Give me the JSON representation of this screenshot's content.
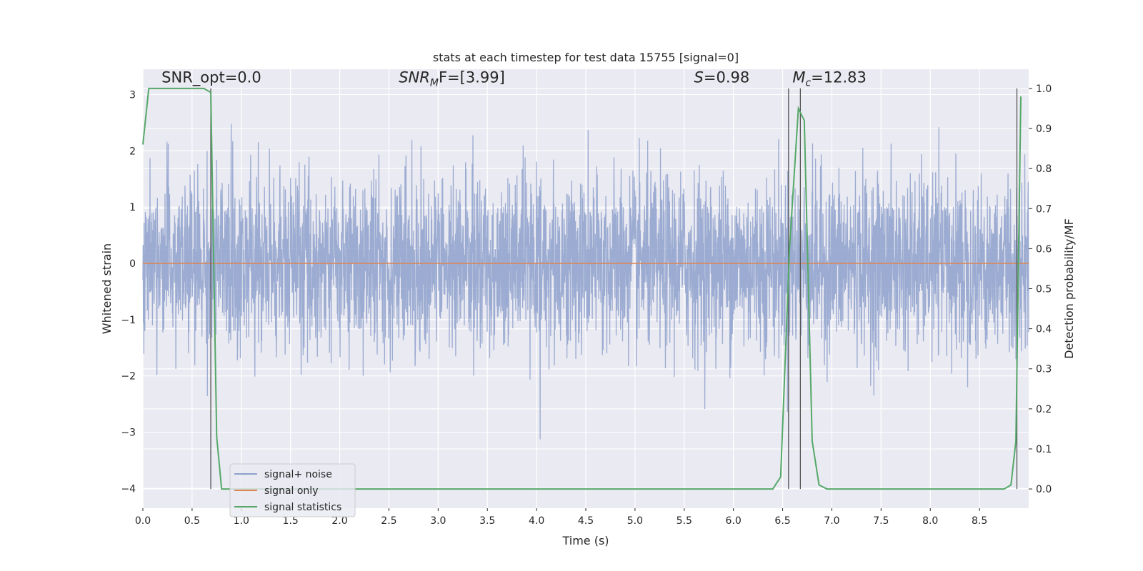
{
  "chart_data": {
    "type": "line",
    "title": "stats at each timestep for test data 15755 [signal=0]",
    "xlabel": "Time (s)",
    "ylabel": "Whitened strain",
    "y2label": "Detection probability/MF",
    "xlim": [
      0.0,
      9.0
    ],
    "ylim": [
      -4.35,
      3.45
    ],
    "y2lim": [
      -0.048,
      1.048
    ],
    "x_ticks": [
      0.0,
      0.5,
      1.0,
      1.5,
      2.0,
      2.5,
      3.0,
      3.5,
      4.0,
      4.5,
      5.0,
      5.5,
      6.0,
      6.5,
      7.0,
      7.5,
      8.0,
      8.5
    ],
    "x_tick_labels": [
      "0.0",
      "0.5",
      "1.0",
      "1.5",
      "2.0",
      "2.5",
      "3.0",
      "3.5",
      "4.0",
      "4.5",
      "5.0",
      "5.5",
      "6.0",
      "6.5",
      "7.0",
      "7.5",
      "8.0",
      "8.5"
    ],
    "y_ticks": [
      3,
      2,
      1,
      0,
      -1,
      -2,
      -3,
      -4
    ],
    "y_tick_labels": [
      "3",
      "2",
      "1",
      "0",
      "−1",
      "−2",
      "−3",
      "−4"
    ],
    "y2_ticks": [
      1.0,
      0.9,
      0.8,
      0.7,
      0.6,
      0.5,
      0.4,
      0.3,
      0.2,
      0.1,
      0.0
    ],
    "y2_tick_labels": [
      "1.0",
      "0.9",
      "0.8",
      "0.7",
      "0.6",
      "0.5",
      "0.4",
      "0.3",
      "0.2",
      "0.1",
      "0.0"
    ],
    "grid": true,
    "legend_position": "lower-left",
    "annotations": [
      {
        "text": "SNR_opt=0.0",
        "x": 0.19,
        "y": 3.15
      },
      {
        "text": "SNR",
        "sub": "M",
        "tail": "F=[3.99]",
        "italic": true,
        "x": 2.6,
        "y": 3.15
      },
      {
        "text": "S",
        "tail": "=0.98",
        "italic": true,
        "x": 5.6,
        "y": 3.15
      },
      {
        "text": "M",
        "sub": "c",
        "tail": "=12.83",
        "italic": true,
        "x": 6.6,
        "y": 3.15
      }
    ],
    "series": [
      {
        "name": "signal+ noise",
        "color": "#8da0cb",
        "kind": "noise",
        "amplitude_std": 0.78,
        "y_min": -3.35,
        "y_max": 2.65
      },
      {
        "name": "signal only",
        "color": "#dd8452",
        "x": [
          0.0,
          9.0
        ],
        "y": [
          0.0,
          0.0
        ]
      },
      {
        "name": "signal statistics",
        "color": "#55a868",
        "axis": "y2",
        "x": [
          0.0,
          0.06,
          0.12,
          0.62,
          0.69,
          0.75,
          0.8,
          6.4,
          6.48,
          6.57,
          6.66,
          6.72,
          6.8,
          6.87,
          6.95,
          8.75,
          8.82,
          8.87,
          8.92
        ],
        "y": [
          0.86,
          1.0,
          1.0,
          1.0,
          0.99,
          0.13,
          0.0,
          0.0,
          0.03,
          0.6,
          0.95,
          0.92,
          0.12,
          0.01,
          0.0,
          0.0,
          0.01,
          0.12,
          0.98
        ]
      }
    ],
    "vertical_lines": [
      0.69,
      6.56,
      6.68,
      8.88
    ]
  }
}
